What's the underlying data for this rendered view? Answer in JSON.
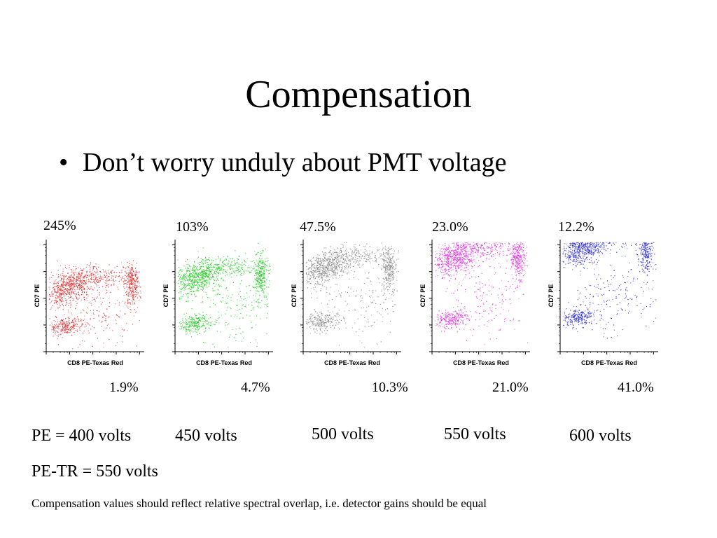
{
  "slide": {
    "title": "Compensation",
    "bullet_marker": "•",
    "bullet": "Don’t worry unduly about PMT voltage",
    "footnote": "Compensation values should reflect relative spectral overlap, i.e. detector gains should be equal"
  },
  "panels": [
    {
      "top_pct": "245%",
      "bottom_pct": "1.9%",
      "volts": "PE = 400 volts",
      "color": "#e03030",
      "x_label": "CD8 PE-Texas Red",
      "y_label": "CD7 PE"
    },
    {
      "top_pct": "103%",
      "bottom_pct": "4.7%",
      "volts": "450 volts",
      "color": "#22cc22",
      "x_label": "CD8 PE-Texas Red",
      "y_label": "CD7 PE"
    },
    {
      "top_pct": "47.5%",
      "bottom_pct": "10.3%",
      "volts": "500 volts",
      "color": "#8a8a8a",
      "x_label": "CD8 PE-Texas Red",
      "y_label": "CD7 PE"
    },
    {
      "top_pct": "23.0%",
      "bottom_pct": "21.0%",
      "volts": "550 volts",
      "color": "#e030e0",
      "x_label": "CD8 PE-Texas Red",
      "y_label": "CD7 PE"
    },
    {
      "top_pct": "12.2%",
      "bottom_pct": "41.0%",
      "volts": "600 volts",
      "color": "#2a2ad8",
      "x_label": "CD8 PE-Texas Red",
      "y_label": "CD7 PE"
    }
  ],
  "pe_tr_volts": "PE-TR = 550 volts"
}
